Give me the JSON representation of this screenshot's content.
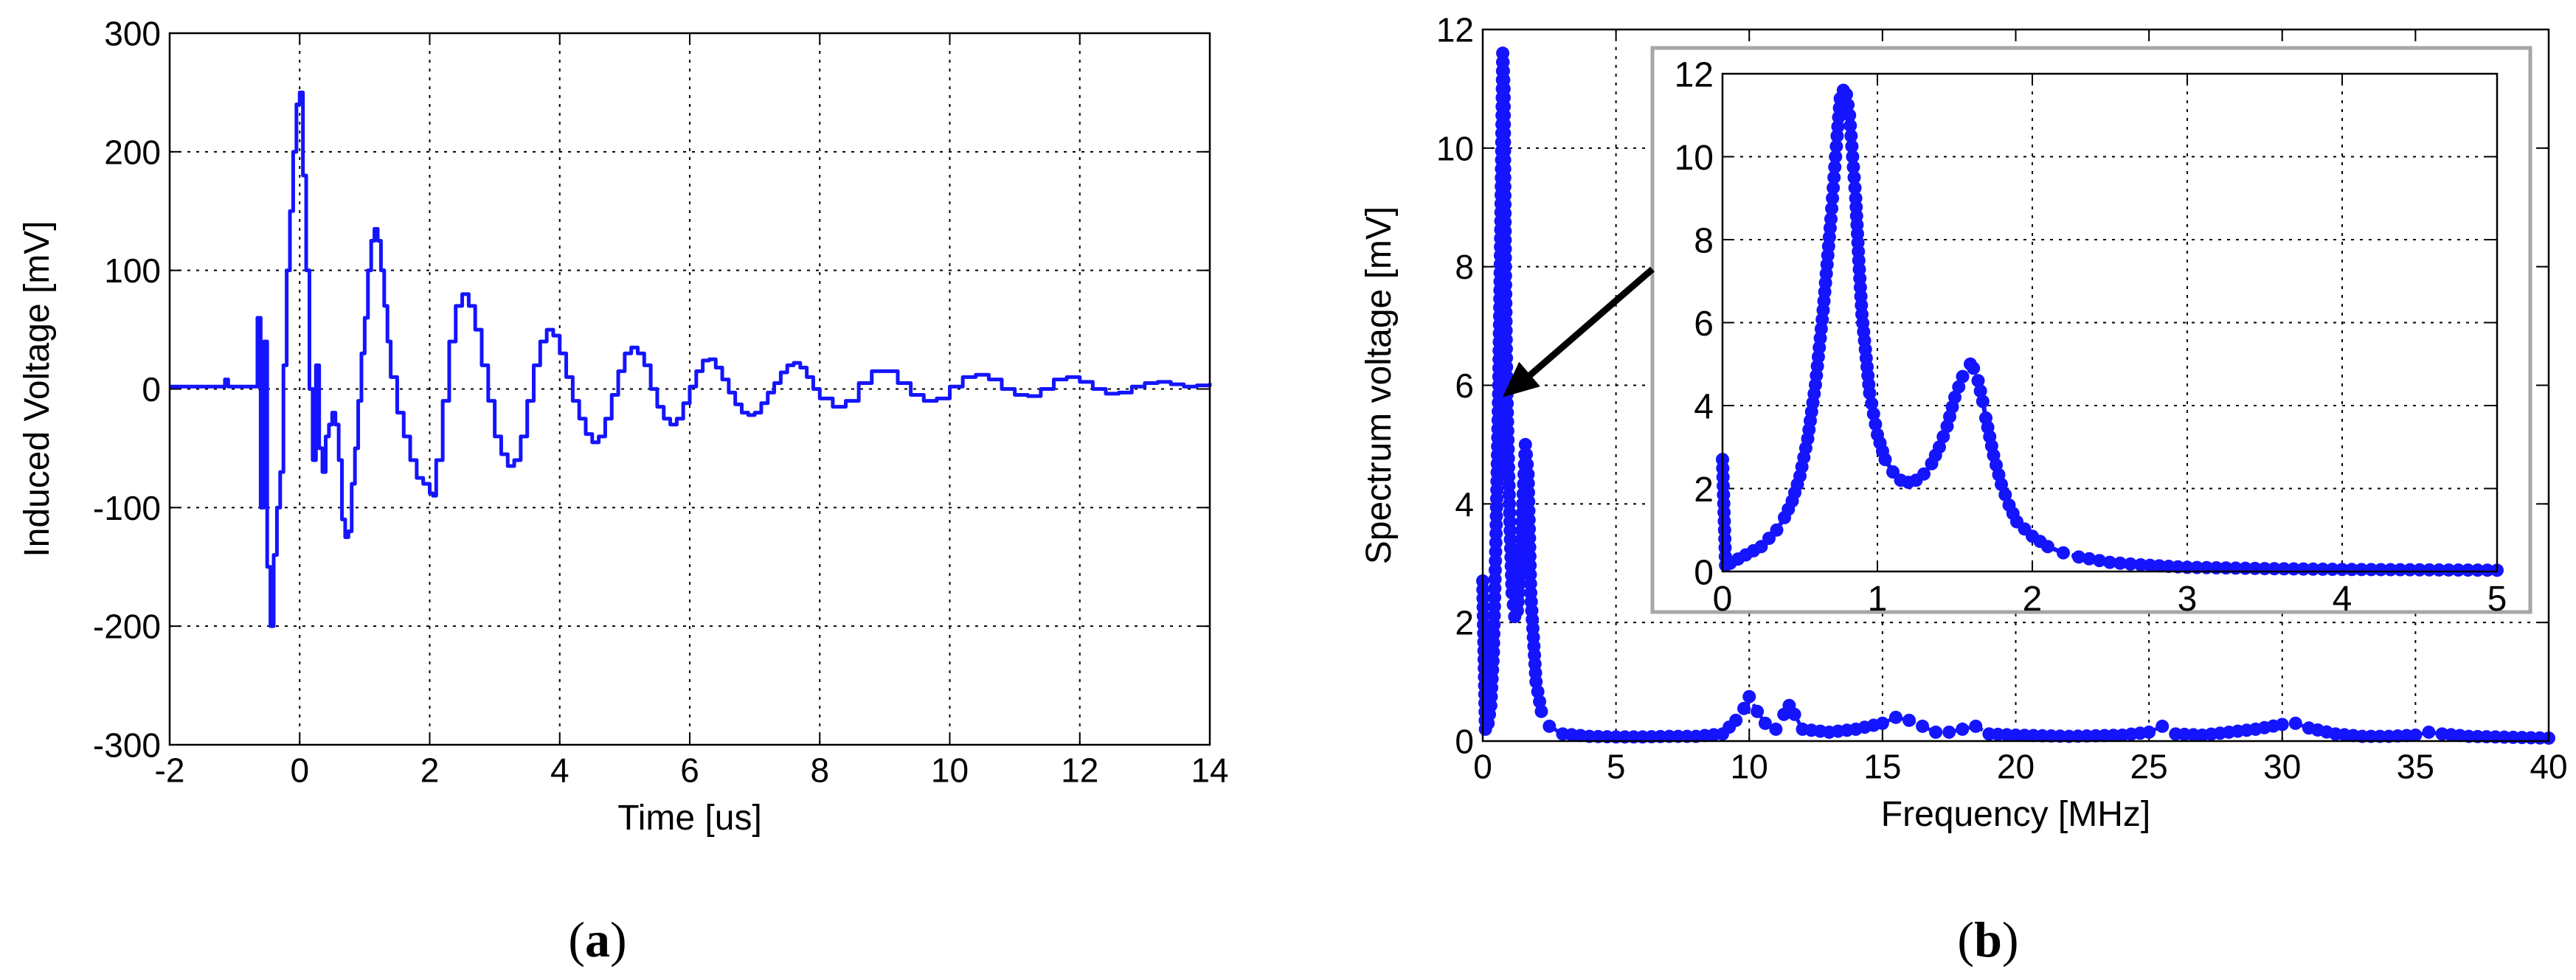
{
  "captions": {
    "a": {
      "open": "(",
      "letter": "a",
      "close": ")"
    },
    "b": {
      "open": "(",
      "letter": "b",
      "close": ")"
    }
  },
  "colors": {
    "series": "#1414ff",
    "axis": "#000000",
    "grid": "#000000",
    "inset_border": "#a6a6a6",
    "arrow": "#000000"
  },
  "chart_data": [
    {
      "id": "a",
      "type": "line",
      "title": "",
      "xlabel": "Time [us]",
      "ylabel": "Induced Voltage [mV]",
      "xlim": [
        -2,
        14
      ],
      "ylim": [
        -300,
        300
      ],
      "xticks": [
        -2,
        0,
        2,
        4,
        6,
        8,
        10,
        12,
        14
      ],
      "yticks": [
        -300,
        -200,
        -100,
        0,
        100,
        200,
        300
      ],
      "grid": true,
      "legend": "none",
      "series": [
        {
          "marker": "none",
          "x": [
            -2,
            -1.2,
            -1.15,
            -1.1,
            -0.7,
            -0.65,
            -0.6,
            -0.55,
            -0.5,
            -0.45,
            -0.4,
            -0.35,
            -0.3,
            -0.25,
            -0.2,
            -0.15,
            -0.1,
            -0.05,
            0,
            0.05,
            0.1,
            0.15,
            0.2,
            0.25,
            0.3,
            0.35,
            0.4,
            0.45,
            0.5,
            0.55,
            0.6,
            0.65,
            0.7,
            0.75,
            0.8,
            0.85,
            0.9,
            0.95,
            1.0,
            1.05,
            1.1,
            1.15,
            1.2,
            1.25,
            1.3,
            1.35,
            1.4,
            1.5,
            1.6,
            1.7,
            1.8,
            1.9,
            2.0,
            2.05,
            2.1,
            2.2,
            2.3,
            2.4,
            2.5,
            2.6,
            2.7,
            2.8,
            2.9,
            3.0,
            3.1,
            3.2,
            3.3,
            3.4,
            3.5,
            3.6,
            3.7,
            3.8,
            3.9,
            4.0,
            4.1,
            4.2,
            4.3,
            4.4,
            4.5,
            4.6,
            4.7,
            4.8,
            4.9,
            5.0,
            5.1,
            5.2,
            5.3,
            5.4,
            5.5,
            5.6,
            5.7,
            5.8,
            5.9,
            6.0,
            6.1,
            6.2,
            6.3,
            6.4,
            6.5,
            6.6,
            6.7,
            6.8,
            6.9,
            7.0,
            7.1,
            7.2,
            7.3,
            7.4,
            7.5,
            7.6,
            7.7,
            7.8,
            7.9,
            8.0,
            8.2,
            8.4,
            8.6,
            8.8,
            9.0,
            9.2,
            9.4,
            9.6,
            9.8,
            10.0,
            10.2,
            10.4,
            10.6,
            10.8,
            11.0,
            11.2,
            11.4,
            11.6,
            11.8,
            12.0,
            12.2,
            12.4,
            12.6,
            12.8,
            13.0,
            13.2,
            13.4,
            13.6,
            13.8,
            14.0
          ],
          "y": [
            2,
            2,
            8,
            2,
            2,
            60,
            -100,
            40,
            -150,
            -200,
            -140,
            -100,
            -70,
            20,
            100,
            150,
            200,
            240,
            250,
            180,
            100,
            0,
            -60,
            20,
            -50,
            -70,
            -40,
            -30,
            -20,
            -30,
            -60,
            -110,
            -125,
            -120,
            -80,
            -50,
            -10,
            30,
            60,
            100,
            125,
            135,
            125,
            100,
            70,
            40,
            10,
            -20,
            -40,
            -60,
            -75,
            -80,
            -88,
            -90,
            -60,
            -10,
            40,
            70,
            80,
            70,
            50,
            20,
            -10,
            -40,
            -55,
            -65,
            -60,
            -40,
            -10,
            20,
            40,
            50,
            45,
            30,
            10,
            -10,
            -25,
            -38,
            -45,
            -40,
            -25,
            -5,
            15,
            30,
            35,
            30,
            20,
            0,
            -15,
            -25,
            -30,
            -25,
            -12,
            2,
            15,
            24,
            25,
            18,
            8,
            -3,
            -13,
            -20,
            -22,
            -20,
            -12,
            -3,
            5,
            14,
            20,
            22,
            18,
            10,
            0,
            -8,
            -15,
            -10,
            5,
            15,
            15,
            5,
            -5,
            -10,
            -8,
            2,
            10,
            12,
            8,
            0,
            -5,
            -6,
            0,
            8,
            10,
            6,
            0,
            -4,
            -3,
            2,
            5,
            6,
            4,
            2,
            3,
            5
          ]
        }
      ]
    },
    {
      "id": "b",
      "type": "line",
      "title": "",
      "xlabel": "Frequency [MHz]",
      "ylabel": "Spectrum voltage [mV]",
      "xlim": [
        0,
        40
      ],
      "ylim": [
        0,
        12
      ],
      "xticks": [
        0,
        5,
        10,
        15,
        20,
        25,
        30,
        35,
        40
      ],
      "yticks": [
        0,
        2,
        4,
        6,
        8,
        10,
        12
      ],
      "grid": true,
      "legend": "none",
      "series": [
        {
          "marker": "circle",
          "line": "dashed",
          "x": [
            0,
            0.1,
            0.2,
            0.3,
            0.4,
            0.5,
            0.6,
            0.7,
            0.75,
            0.8,
            0.85,
            0.9,
            1.0,
            1.1,
            1.2,
            1.3,
            1.4,
            1.5,
            1.6,
            1.7,
            1.8,
            2.0,
            2.2,
            2.5,
            3.0,
            4,
            5,
            6,
            7,
            8,
            9,
            9.5,
            9.8,
            10,
            10.3,
            10.6,
            11,
            11.3,
            11.5,
            11.7,
            12,
            13,
            14,
            15,
            15.5,
            16,
            16.5,
            17,
            17.5,
            18,
            18.5,
            19,
            20,
            22,
            24,
            25,
            25.5,
            26,
            27,
            28,
            29,
            30,
            30.5,
            31,
            32,
            33,
            34,
            35,
            35.5,
            36,
            37,
            38,
            39,
            40
          ],
          "y": [
            2.7,
            0.2,
            0.3,
            0.6,
            1.5,
            3.5,
            6.0,
            9.5,
            11.6,
            11.0,
            8.0,
            6.0,
            4.0,
            2.5,
            2.1,
            2.2,
            2.8,
            4.0,
            5.0,
            4.5,
            2.5,
            1.0,
            0.5,
            0.25,
            0.12,
            0.08,
            0.07,
            0.07,
            0.08,
            0.08,
            0.12,
            0.35,
            0.55,
            0.75,
            0.5,
            0.3,
            0.2,
            0.45,
            0.6,
            0.45,
            0.2,
            0.15,
            0.2,
            0.3,
            0.4,
            0.35,
            0.25,
            0.15,
            0.15,
            0.2,
            0.25,
            0.12,
            0.1,
            0.08,
            0.1,
            0.15,
            0.25,
            0.12,
            0.1,
            0.15,
            0.2,
            0.28,
            0.3,
            0.22,
            0.12,
            0.08,
            0.08,
            0.1,
            0.15,
            0.12,
            0.08,
            0.07,
            0.06,
            0.05
          ]
        }
      ],
      "inset": {
        "xlim": [
          0,
          5
        ],
        "ylim": [
          0,
          12
        ],
        "xticks": [
          0,
          1,
          2,
          3,
          4,
          5
        ],
        "yticks": [
          0,
          2,
          4,
          6,
          8,
          10,
          12
        ],
        "grid": true,
        "series": [
          {
            "marker": "circle",
            "line": "dashed",
            "x": [
              0,
              0.02,
              0.05,
              0.1,
              0.15,
              0.2,
              0.25,
              0.3,
              0.35,
              0.4,
              0.45,
              0.5,
              0.55,
              0.6,
              0.65,
              0.7,
              0.72,
              0.74,
              0.76,
              0.78,
              0.8,
              0.82,
              0.84,
              0.86,
              0.88,
              0.9,
              0.95,
              1.0,
              1.05,
              1.1,
              1.15,
              1.2,
              1.25,
              1.3,
              1.35,
              1.4,
              1.45,
              1.5,
              1.55,
              1.6,
              1.62,
              1.65,
              1.68,
              1.7,
              1.75,
              1.8,
              1.85,
              1.9,
              2.0,
              2.1,
              2.2,
              2.3,
              2.5,
              2.7,
              3.0,
              3.5,
              4.0,
              4.5,
              5.0
            ],
            "y": [
              2.7,
              0.15,
              0.2,
              0.3,
              0.4,
              0.5,
              0.6,
              0.8,
              1.0,
              1.3,
              1.7,
              2.3,
              3.2,
              4.5,
              6.3,
              8.5,
              9.5,
              10.5,
              11.4,
              11.6,
              11.5,
              11.0,
              10.0,
              9.0,
              7.5,
              6.2,
              4.3,
              3.3,
              2.7,
              2.4,
              2.2,
              2.15,
              2.2,
              2.35,
              2.6,
              3.0,
              3.5,
              4.2,
              4.7,
              5.0,
              4.9,
              4.6,
              4.1,
              3.7,
              2.8,
              2.1,
              1.6,
              1.2,
              0.85,
              0.6,
              0.45,
              0.35,
              0.22,
              0.16,
              0.1,
              0.07,
              0.05,
              0.04,
              0.03
            ]
          }
        ]
      }
    }
  ]
}
